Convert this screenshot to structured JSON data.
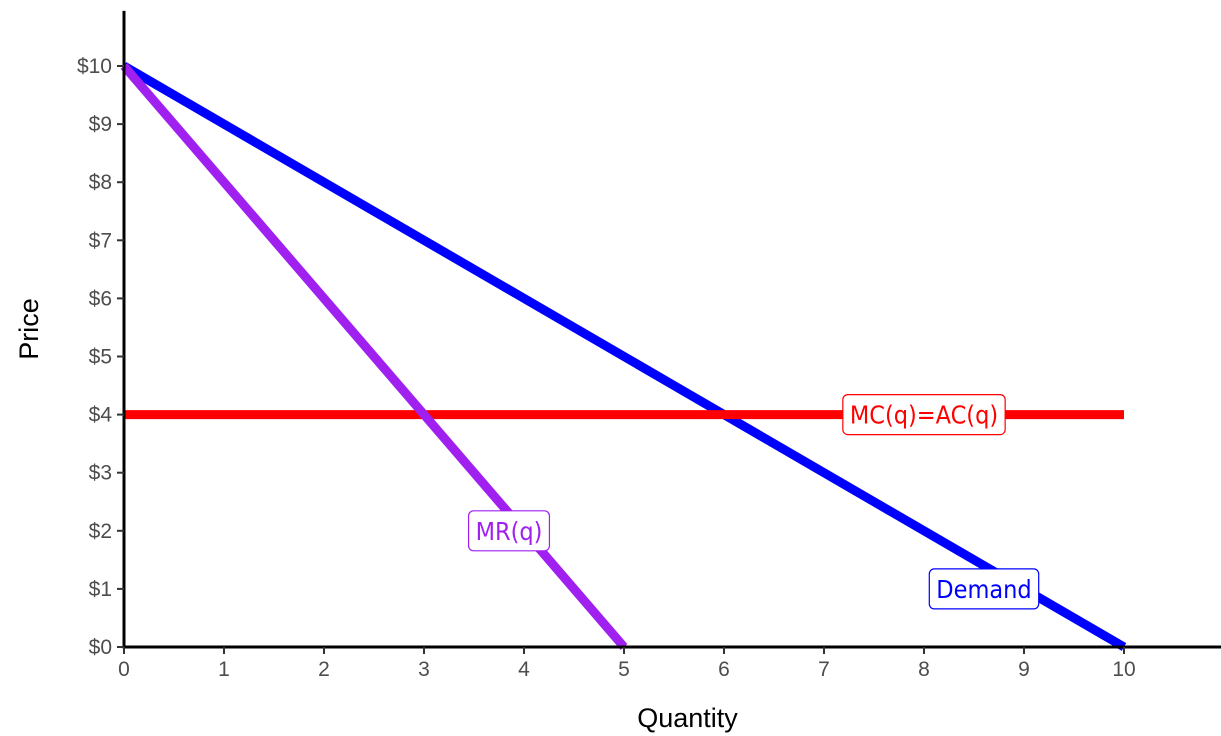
{
  "chart_data": {
    "type": "line",
    "title": "",
    "xlabel": "Quantity",
    "ylabel": "Price",
    "xlim": [
      0,
      11
    ],
    "ylim": [
      0,
      11
    ],
    "x_ticks": [
      0,
      1,
      2,
      3,
      4,
      5,
      6,
      7,
      8,
      9,
      10
    ],
    "x_tick_labels": [
      "0",
      "1",
      "2",
      "3",
      "4",
      "5",
      "6",
      "7",
      "8",
      "9",
      "10"
    ],
    "y_ticks": [
      0,
      1,
      2,
      3,
      4,
      5,
      6,
      7,
      8,
      9,
      10
    ],
    "y_tick_labels": [
      "$0",
      "$1",
      "$2",
      "$3",
      "$4",
      "$5",
      "$6",
      "$7",
      "$8",
      "$9",
      "$10"
    ],
    "grid": false,
    "series": [
      {
        "key": "demand",
        "name": "Demand",
        "color": "#0000ff",
        "x": [
          0,
          10
        ],
        "y": [
          10,
          0
        ],
        "label": {
          "text": "Demand",
          "at_x": 8.6,
          "at_y": 1.0
        }
      },
      {
        "key": "mc",
        "name": "MC(q)=AC(q)",
        "color": "#ff0000",
        "x": [
          0,
          10
        ],
        "y": [
          4,
          4
        ],
        "label": {
          "text": "MC(q)=AC(q)",
          "at_x": 8.0,
          "at_y": 4.0
        }
      },
      {
        "key": "mr",
        "name": "MR(q)",
        "color": "#a020f0",
        "x": [
          0,
          5
        ],
        "y": [
          10,
          0
        ],
        "label": {
          "text": "MR(q)",
          "at_x": 3.85,
          "at_y": 2.0
        }
      }
    ]
  }
}
